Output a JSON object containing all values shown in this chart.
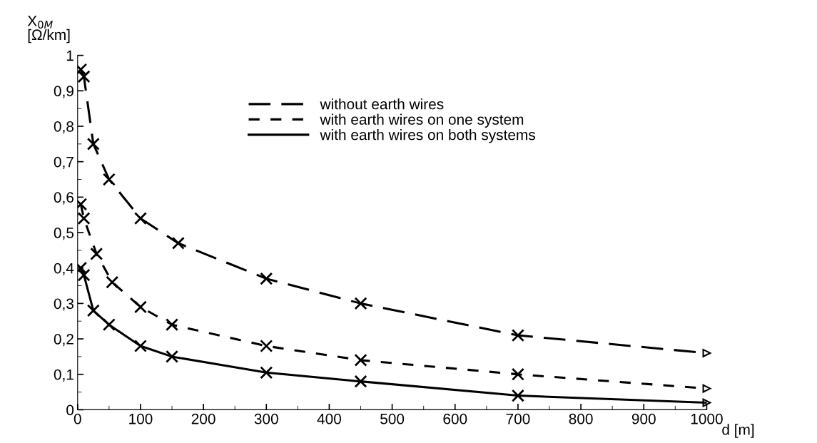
{
  "chart_data": {
    "type": "line",
    "xlabel": "d [m]",
    "ylabel": "X$_{0M}$\n[Ω/km]",
    "xlim": [
      0,
      1000
    ],
    "xticks": [
      0,
      100,
      200,
      300,
      400,
      500,
      600,
      700,
      800,
      900,
      1000
    ],
    "ylim": [
      0,
      1
    ],
    "yticks": [
      0,
      {
        "value": 0.1,
        "label": "0,1"
      },
      {
        "value": 0.2,
        "label": "0,2"
      },
      {
        "value": 0.3,
        "label": "0,3"
      },
      {
        "value": 0.4,
        "label": "0,4"
      },
      {
        "value": 0.5,
        "label": "0,5"
      },
      {
        "value": 0.6,
        "label": "0,6"
      },
      {
        "value": 0.7,
        "label": "0,7"
      },
      {
        "value": 0.8,
        "label": "0,8"
      },
      {
        "value": 0.9,
        "label": "0,9"
      },
      1
    ],
    "grid": false,
    "legend": "top",
    "marker": "cross",
    "series": [
      {
        "name": "without earth wires",
        "color": "#000000",
        "line_style": "dashed",
        "x": [
          5,
          10,
          25,
          50,
          100,
          160,
          300,
          450,
          700,
          1000
        ],
        "values": [
          0.96,
          0.94,
          0.75,
          0.65,
          0.54,
          0.47,
          0.37,
          0.3,
          0.21,
          0.16
        ]
      },
      {
        "name": "with earth wires on one system",
        "color": "#000000",
        "line_style": "dashed",
        "x": [
          5,
          10,
          30,
          55,
          100,
          150,
          300,
          450,
          700,
          1000
        ],
        "values": [
          0.58,
          0.54,
          0.44,
          0.36,
          0.29,
          0.24,
          0.18,
          0.14,
          0.1,
          0.06
        ]
      },
      {
        "name": "with earth wires on both systems",
        "color": "#000000",
        "line_style": "solid",
        "x": [
          5,
          10,
          25,
          50,
          100,
          150,
          300,
          450,
          700,
          1000
        ],
        "values": [
          0.4,
          0.38,
          0.28,
          0.24,
          0.18,
          0.15,
          0.105,
          0.08,
          0.04,
          0.02
        ]
      }
    ]
  }
}
